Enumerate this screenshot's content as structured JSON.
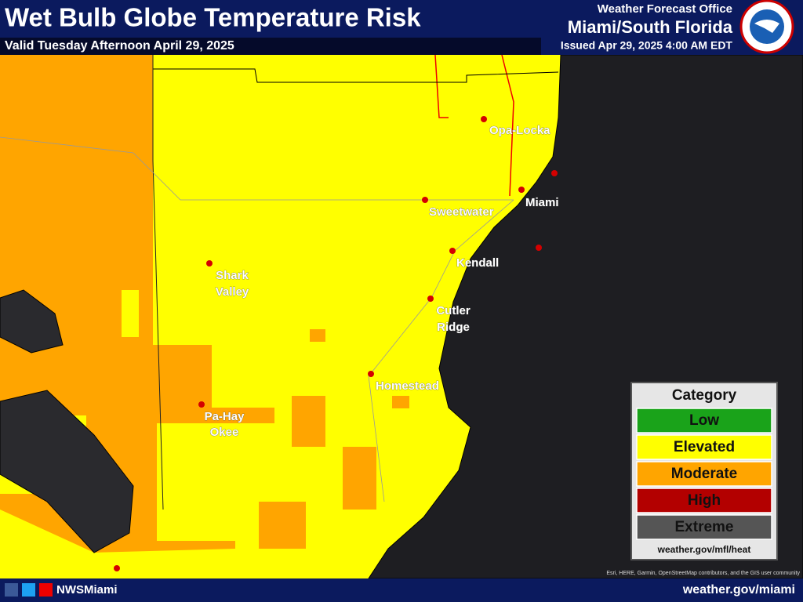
{
  "header": {
    "title": "Wet Bulb Globe Temperature Risk",
    "valid": "Valid Tuesday Afternoon April 29, 2025",
    "office_line1": "Weather Forecast Office",
    "office_line2": "Miami/South Florida",
    "issued": "Issued Apr 29, 2025 4:00 AM EDT"
  },
  "cities": [
    {
      "lines": [
        "Opa-Locka"
      ]
    },
    {
      "lines": [
        "Miami"
      ]
    },
    {
      "lines": [
        "Sweetwater"
      ]
    },
    {
      "lines": [
        "Kendall"
      ]
    },
    {
      "lines": [
        "Shark",
        "Valley"
      ]
    },
    {
      "lines": [
        "Cutler",
        "Ridge"
      ]
    },
    {
      "lines": [
        "Homestead"
      ]
    },
    {
      "lines": [
        "Pa-Hay",
        "Okee"
      ]
    }
  ],
  "legend": {
    "title": "Category",
    "items": [
      {
        "label": "Low",
        "color": "#1aa31a"
      },
      {
        "label": "Elevated",
        "color": "#ffff00"
      },
      {
        "label": "Moderate",
        "color": "#ffa500"
      },
      {
        "label": "High",
        "color": "#b30000"
      },
      {
        "label": "Extreme",
        "color": "#555555"
      }
    ],
    "url": "weather.gov/mfl/heat"
  },
  "attribution": "Esri, HERE, Garmin, OpenStreetMap contributors, and the GIS user community",
  "footer": {
    "handle": "NWSMiami",
    "url": "weather.gov/miami"
  }
}
